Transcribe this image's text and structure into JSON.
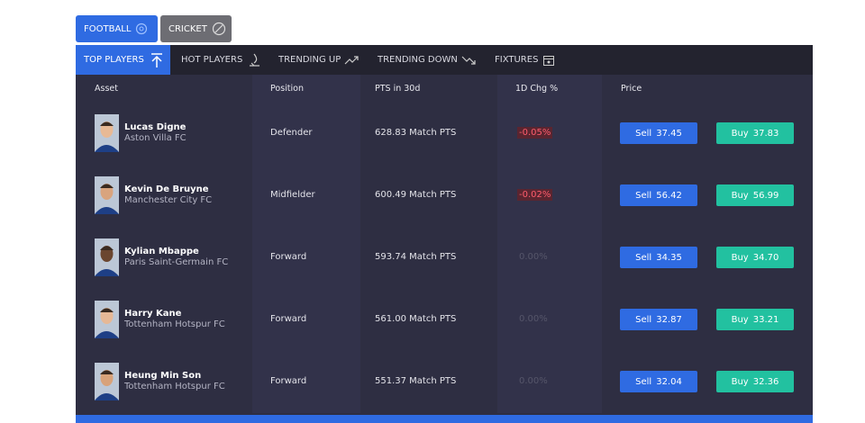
{
  "sport_tabs": [
    "FOOTBALL",
    "CRICKET"
  ],
  "nav_tabs": [
    "TOP PLAYERS",
    "HOT PLAYERS",
    "TRENDING UP",
    "TRENDING DOWN",
    "FIXTURES"
  ],
  "table": {
    "columns": [
      "Asset",
      "Position",
      "PTS in 30d",
      "1D Chg %",
      "Price"
    ],
    "actions": {
      "sell": "Sell",
      "buy": "Buy"
    },
    "rows": [
      {
        "name": "Lucas Digne",
        "club": "Aston Villa FC",
        "position": "Defender",
        "pts": "628.83 Match PTS",
        "change": "-0.05%",
        "sell": "37.45",
        "buy": "37.83"
      },
      {
        "name": "Kevin De Bruyne",
        "club": "Manchester City FC",
        "position": "Midfielder",
        "pts": "600.49 Match PTS",
        "change": "-0.02%",
        "sell": "56.42",
        "buy": "56.99"
      },
      {
        "name": "Kylian Mbappe",
        "club": "Paris Saint-Germain FC",
        "position": "Forward",
        "pts": "593.74 Match PTS",
        "change": "0.00%",
        "sell": "34.35",
        "buy": "34.70"
      },
      {
        "name": "Harry Kane",
        "club": "Tottenham Hotspur FC",
        "position": "Forward",
        "pts": "561.00 Match PTS",
        "change": "0.00%",
        "sell": "32.87",
        "buy": "33.21"
      },
      {
        "name": "Heung Min Son",
        "club": "Tottenham Hotspur FC",
        "position": "Forward",
        "pts": "551.37 Match PTS",
        "change": "0.00%",
        "sell": "32.04",
        "buy": "32.36"
      }
    ]
  }
}
